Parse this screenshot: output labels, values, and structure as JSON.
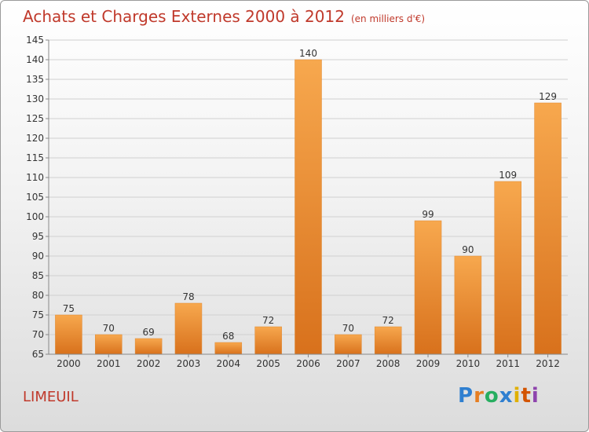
{
  "header": {
    "title": "Achats et Charges Externes 2000 à 2012",
    "unit": "(en milliers d'€)"
  },
  "commune": "LIMEUIL",
  "logo": {
    "letters": [
      {
        "ch": "P",
        "color": "#2f7fd0"
      },
      {
        "ch": "r",
        "color": "#e67e22"
      },
      {
        "ch": "o",
        "color": "#27ae60"
      },
      {
        "ch": "x",
        "color": "#2f7fd0"
      },
      {
        "ch": "i",
        "color": "#e0b000"
      },
      {
        "ch": "t",
        "color": "#d35400"
      },
      {
        "ch": "i",
        "color": "#8e44ad"
      }
    ]
  },
  "colors": {
    "bar_top": "#f7a84e",
    "bar_bottom": "#d8711c",
    "text_accent": "#c0392b"
  },
  "chart_data": {
    "type": "bar",
    "title": "Achats et Charges Externes 2000 à 2012",
    "subtitle": "(en milliers d'€)",
    "categories": [
      "2000",
      "2001",
      "2002",
      "2003",
      "2004",
      "2005",
      "2006",
      "2007",
      "2008",
      "2009",
      "2010",
      "2011",
      "2012"
    ],
    "values": [
      75,
      70,
      69,
      78,
      68,
      72,
      140,
      70,
      72,
      99,
      90,
      109,
      129
    ],
    "ylim": [
      65,
      145
    ],
    "yticks": [
      65,
      70,
      75,
      80,
      85,
      90,
      95,
      100,
      105,
      110,
      115,
      120,
      125,
      130,
      135,
      140,
      145
    ],
    "grid": true,
    "xlabel": "",
    "ylabel": ""
  }
}
